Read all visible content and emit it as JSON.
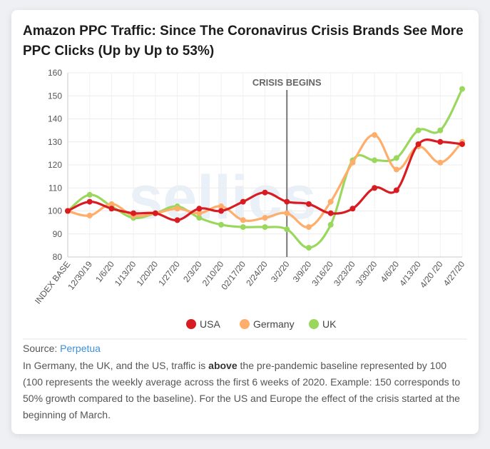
{
  "title": "Amazon PPC Traffic: Since The Coronavirus Crisis Brands See More PPC Clicks (Up by Up to 53%)",
  "watermark": "sellics",
  "chart_data": {
    "type": "line",
    "categories": [
      "INDEX BASE",
      "12/30/19",
      "1/6/20",
      "1/13/20",
      "1/20/20",
      "1/27/20",
      "2/3/20",
      "2/10/20",
      "02/17/20",
      "2/24/20",
      "3/2/20",
      "3/9/20",
      "3/16/20",
      "3/23/20",
      "3/30/20",
      "4/6/20",
      "4/13/20",
      "4/20 /20",
      "4/27/20"
    ],
    "series": [
      {
        "name": "USA",
        "color": "#d81c22",
        "values": [
          100,
          104,
          101,
          99,
          99,
          96,
          101,
          100,
          104,
          108,
          104,
          103,
          99,
          101,
          110,
          109,
          129,
          130,
          129
        ]
      },
      {
        "name": "Germany",
        "color": "#ffad6a",
        "values": [
          100,
          98,
          103,
          98,
          99,
          101,
          99,
          102,
          96,
          97,
          99,
          93,
          104,
          121,
          133,
          118,
          128,
          121,
          130
        ]
      },
      {
        "name": "UK",
        "color": "#9ad85d",
        "values": [
          100,
          107,
          102,
          97,
          99,
          102,
          97,
          94,
          93,
          93,
          92,
          84,
          94,
          122,
          122,
          123,
          135,
          135,
          153
        ]
      }
    ],
    "yticks": [
      80,
      90,
      100,
      110,
      120,
      130,
      140,
      150,
      160
    ],
    "ylim": [
      80,
      160
    ],
    "annotation": {
      "label": "CRISIS BEGINS",
      "category": "3/2/20"
    },
    "legend_position": "bottom"
  },
  "source": {
    "label": "Source:",
    "link": "Perpetua"
  },
  "description": {
    "before": "In Germany, the UK, and the US, traffic is ",
    "bold": "above",
    "after": " the pre-pandemic baseline represented by 100 (100 represents the weekly average across the first 6 weeks of 2020. Example: 150 corresponds to 50% growth compared to the baseline). For the US and Europe the effect of the crisis started at the beginning of March."
  }
}
